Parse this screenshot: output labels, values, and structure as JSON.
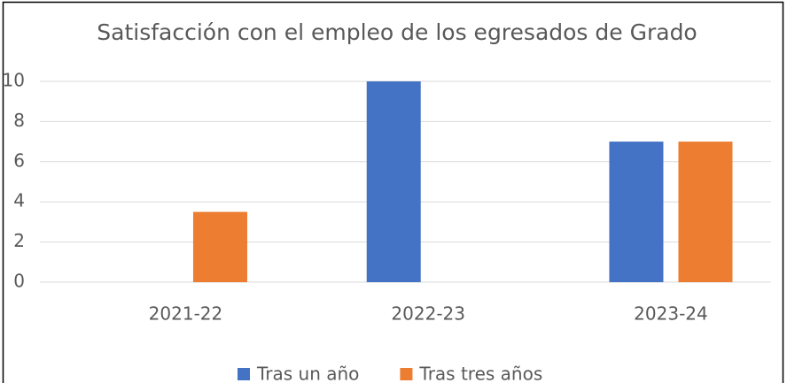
{
  "chart_data": {
    "type": "bar",
    "title": "Satisfacción con el empleo de los egresados de Grado",
    "categories": [
      "2021-22",
      "2022-23",
      "2023-24"
    ],
    "series": [
      {
        "name": "Tras un año",
        "color": "#4472c4",
        "values": [
          null,
          10,
          7
        ]
      },
      {
        "name": "Tras tres años",
        "color": "#ed7d31",
        "values": [
          3.5,
          null,
          7
        ]
      }
    ],
    "ylim": [
      0,
      10
    ],
    "yticks": [
      0,
      2,
      4,
      6,
      8,
      10
    ],
    "grid": true,
    "legend": "bottom"
  }
}
